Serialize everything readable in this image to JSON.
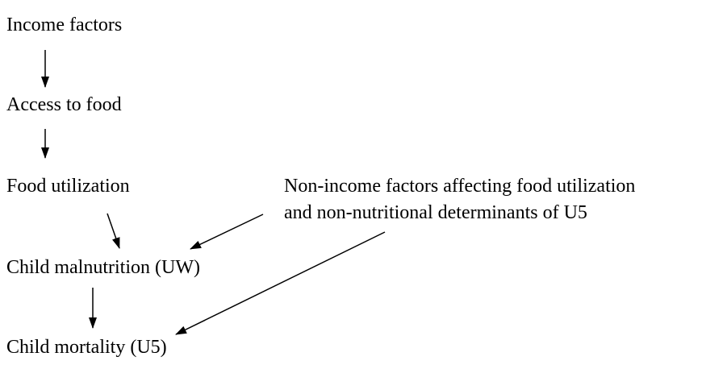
{
  "nodes": [
    {
      "label": "Income factors"
    },
    {
      "label": "Access to food"
    },
    {
      "label": "Food utilization"
    },
    {
      "label": "Child malnutrition (UW)"
    },
    {
      "label": "Child mortality (U5)"
    },
    {
      "label": "Non-income factors affecting food utilization"
    },
    {
      "label": "and non-nutritional determinants of U5"
    }
  ]
}
